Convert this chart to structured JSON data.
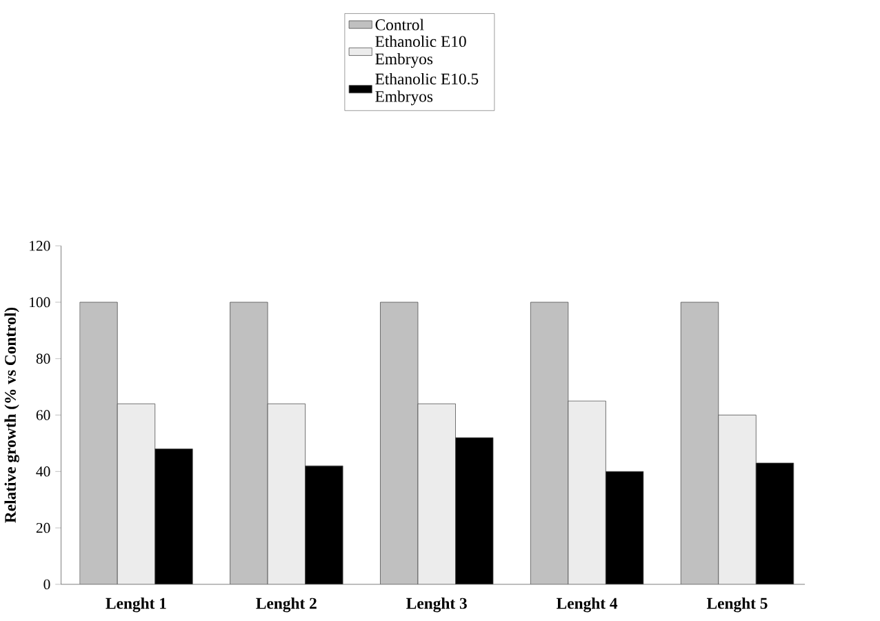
{
  "chart_data": {
    "type": "bar",
    "ylabel": "Relative growth (% vs Control)",
    "categories": [
      "Lenght 1",
      "Lenght 2",
      "Lenght 3",
      "Lenght 4",
      "Lenght 5"
    ],
    "series": [
      {
        "name": "Control",
        "color": "#c0c0c0",
        "values": [
          100,
          100,
          100,
          100,
          100
        ]
      },
      {
        "name": "Ethanolic E10 Embryos",
        "color": "#ececec",
        "values": [
          64,
          64,
          64,
          65,
          60
        ]
      },
      {
        "name": "Ethanolic E10.5 Embryos",
        "color": "#000000",
        "values": [
          48,
          42,
          52,
          40,
          43
        ]
      }
    ],
    "ylim": [
      0,
      120
    ],
    "yticks": [
      0,
      20,
      40,
      60,
      80,
      100,
      120
    ],
    "legend": "top"
  }
}
